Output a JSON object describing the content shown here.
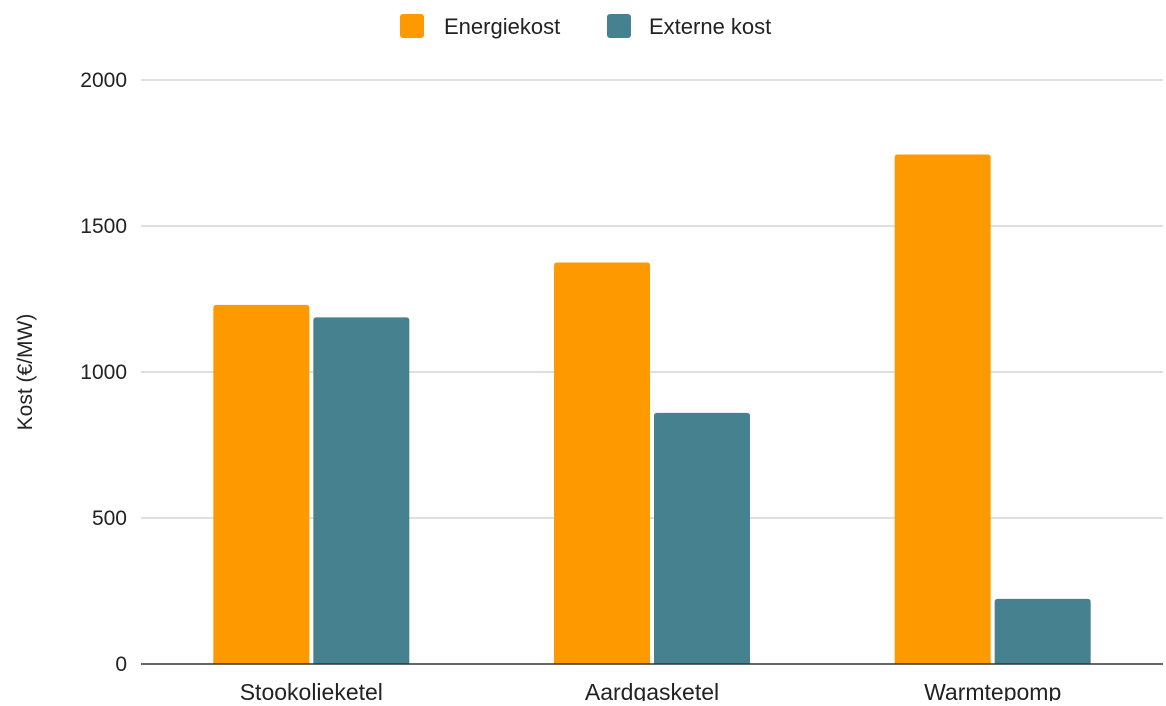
{
  "chart_data": {
    "type": "bar",
    "title": "",
    "xlabel": "",
    "ylabel": "Kost (€/MW)",
    "ylim": [
      0,
      2000
    ],
    "yticks": [
      0,
      500,
      1000,
      1500,
      2000
    ],
    "grid": true,
    "legend": "top-center",
    "categories": [
      "Stookolieketel",
      "Aardgasketel",
      "Warmtepomp"
    ],
    "series": [
      {
        "name": "Energiekost",
        "color": "#ff9900",
        "values": [
          1230,
          1375,
          1745
        ]
      },
      {
        "name": "Externe kost",
        "color": "#45818e",
        "values": [
          1187,
          860,
          223
        ]
      }
    ]
  }
}
